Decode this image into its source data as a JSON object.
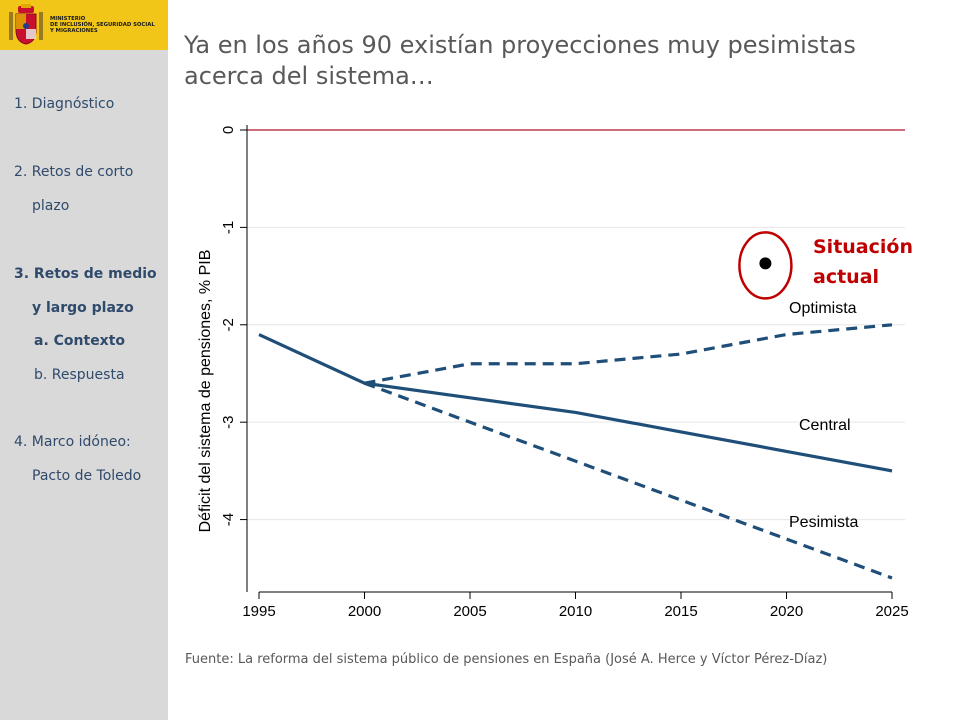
{
  "ministry": {
    "lines": [
      "Ministerio",
      "de Inclusión, Seguridad Social",
      "y Migraciones"
    ]
  },
  "nav": {
    "items": [
      {
        "label": "1. Diagnóstico",
        "active": false
      },
      {
        "label": "2. Retos de corto",
        "active": false
      },
      {
        "label": "plazo",
        "active": false
      },
      {
        "label": "3. Retos de medio",
        "active": true
      },
      {
        "label": "y largo plazo",
        "active": true
      },
      {
        "label": "a. Contexto",
        "active": true
      },
      {
        "label": "b. Respuesta",
        "active": false
      },
      {
        "label": "4. Marco idóneo:",
        "active": false
      },
      {
        "label": "Pacto de Toledo",
        "active": false
      }
    ]
  },
  "slide": {
    "title": "Ya en los años 90 existían proyecciones muy pesimistas acerca del sistema…",
    "source": "Fuente: La reforma del sistema público de pensiones en España (José A. Herce y Víctor Pérez-Díaz)"
  },
  "colors": {
    "sidebar_bg": "#d9d9d9",
    "logo_bg": "#f2c618",
    "nav_text": "#2f4a6b",
    "series": "#1f4e79",
    "zero_line": "#b2182b",
    "annotation": "#c00000"
  },
  "chart_data": {
    "type": "line",
    "title": "",
    "xlabel": "",
    "ylabel": "Déficit del sistema de pensiones, % PIB",
    "xlim": [
      1995,
      2025
    ],
    "ylim": [
      -4.6,
      0
    ],
    "x_ticks": [
      1995,
      2000,
      2005,
      2010,
      2015,
      2020,
      2025
    ],
    "y_ticks": [
      0,
      -1,
      -2,
      -3,
      -4
    ],
    "grid": true,
    "reference_line": {
      "y": 0,
      "color": "#b2182b"
    },
    "series": [
      {
        "name": "Central",
        "style": "solid",
        "x": [
          1995,
          2000,
          2005,
          2010,
          2015,
          2020,
          2025
        ],
        "y": [
          -2.1,
          -2.6,
          -2.75,
          -2.9,
          -3.1,
          -3.3,
          -3.5
        ]
      },
      {
        "name": "Optimista",
        "style": "dashed",
        "x": [
          2000,
          2005,
          2010,
          2015,
          2020,
          2025
        ],
        "y": [
          -2.6,
          -2.4,
          -2.4,
          -2.3,
          -2.1,
          -2.0
        ]
      },
      {
        "name": "Pesimista",
        "style": "dashed",
        "x": [
          2000,
          2005,
          2010,
          2015,
          2020,
          2025
        ],
        "y": [
          -2.6,
          -3.0,
          -3.4,
          -3.8,
          -4.2,
          -4.6
        ]
      }
    ],
    "annotation": {
      "text_lines": [
        "Situación",
        "actual"
      ],
      "x": 2019,
      "y": -1.37
    }
  }
}
